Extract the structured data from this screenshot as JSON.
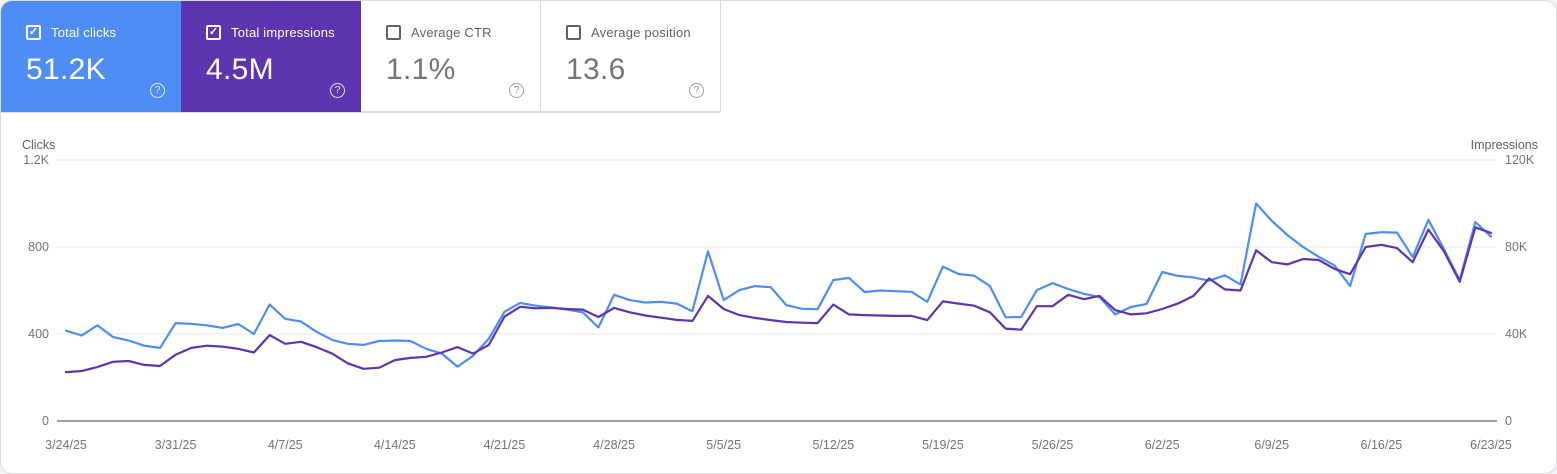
{
  "cards": [
    {
      "id": "total-clicks",
      "label": "Total clicks",
      "value": "51.2K",
      "checked": true,
      "bg": "#4e8df5",
      "text": "#ffffff"
    },
    {
      "id": "total-impressions",
      "label": "Total impressions",
      "value": "4.5M",
      "checked": true,
      "bg": "#5e35b1",
      "text": "#ffffff"
    },
    {
      "id": "average-ctr",
      "label": "Average CTR",
      "value": "1.1%",
      "checked": false,
      "bg": "#ffffff",
      "text": "#5f6368"
    },
    {
      "id": "average-position",
      "label": "Average position",
      "value": "13.6",
      "checked": false,
      "bg": "#ffffff",
      "text": "#5f6368"
    }
  ],
  "help_glyph": "?",
  "check_glyph": "✓",
  "chart_data": {
    "type": "line",
    "left_axis": {
      "title": "Clicks",
      "ticks": [
        "0",
        "400",
        "800",
        "1.2K"
      ],
      "max": 1200
    },
    "right_axis": {
      "title": "Impressions",
      "ticks": [
        "0",
        "40K",
        "80K",
        "120K"
      ],
      "max": 120000
    },
    "x_labels": [
      "3/24/25",
      "3/31/25",
      "4/7/25",
      "4/14/25",
      "4/21/25",
      "4/28/25",
      "5/5/25",
      "5/12/25",
      "5/19/25",
      "5/26/25",
      "6/2/25",
      "6/9/25",
      "6/16/25",
      "6/23/25"
    ],
    "grid": true,
    "legend_position": "none",
    "colors": {
      "grid": "#e8eaed",
      "baseline": "#9aa0a6"
    },
    "series": [
      {
        "name": "Total clicks",
        "axis": "left",
        "color": "#4e8df5",
        "values": [
          415,
          393,
          440,
          386,
          370,
          346,
          336,
          450,
          447,
          440,
          428,
          446,
          400,
          535,
          470,
          458,
          410,
          373,
          355,
          350,
          368,
          370,
          368,
          332,
          310,
          250,
          300,
          378,
          502,
          543,
          530,
          522,
          512,
          500,
          430,
          580,
          556,
          545,
          548,
          540,
          505,
          780,
          556,
          602,
          620,
          615,
          533,
          516,
          514,
          648,
          658,
          593,
          600,
          597,
          594,
          548,
          710,
          676,
          668,
          620,
          477,
          478,
          602,
          634,
          607,
          585,
          570,
          490,
          524,
          538,
          685,
          667,
          660,
          645,
          670,
          628,
          1000,
          920,
          855,
          800,
          755,
          716,
          620,
          860,
          868,
          866,
          754,
          925,
          790,
          648,
          915,
          848
        ]
      },
      {
        "name": "Total impressions",
        "axis": "right",
        "color": "#5e35b1",
        "values": [
          22500,
          23000,
          24800,
          27200,
          27600,
          25800,
          25300,
          30500,
          33600,
          34600,
          34200,
          33200,
          31500,
          39500,
          35500,
          36400,
          34000,
          31000,
          26500,
          24000,
          24500,
          28000,
          29000,
          29500,
          31500,
          34000,
          31000,
          35000,
          48000,
          52500,
          51800,
          52000,
          51500,
          51200,
          47800,
          52000,
          50000,
          48500,
          47500,
          46500,
          46000,
          57500,
          51500,
          48700,
          47400,
          46400,
          45500,
          45200,
          45000,
          53500,
          49000,
          48700,
          48500,
          48300,
          48300,
          46400,
          55000,
          54000,
          53000,
          50000,
          42500,
          42000,
          52800,
          52800,
          58000,
          56000,
          57500,
          51000,
          49000,
          49500,
          51500,
          54000,
          57500,
          65500,
          60500,
          60000,
          78500,
          73000,
          72000,
          74500,
          74000,
          70000,
          67500,
          80000,
          81000,
          79500,
          73000,
          88000,
          78000,
          64000,
          89000,
          86500
        ]
      }
    ]
  }
}
